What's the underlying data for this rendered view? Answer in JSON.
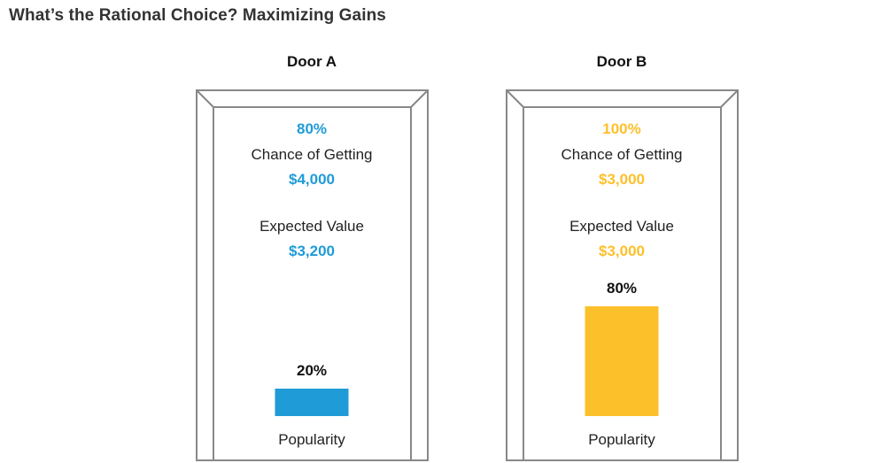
{
  "title": "What’s the Rational Choice? Maximizing Gains",
  "colors": {
    "door_a": "#1f9bd7",
    "door_b": "#fcc02b",
    "frame": "#888888"
  },
  "chart_data": {
    "type": "bar",
    "title": "What’s the Rational Choice? Maximizing Gains",
    "categories": [
      "Door A",
      "Door B"
    ],
    "values": [
      20,
      80
    ],
    "unit": "%",
    "xlabel": "Popularity",
    "doors": [
      {
        "label": "Door A",
        "chance": "80%",
        "chance_label": "Chance of Getting",
        "amount": "$4,000",
        "ev_label": "Expected Value",
        "ev": "$3,200",
        "popularity_value": 20,
        "popularity": "20%",
        "popularity_label": "Popularity"
      },
      {
        "label": "Door B",
        "chance": "100%",
        "chance_label": "Chance of Getting",
        "amount": "$3,000",
        "ev_label": "Expected Value",
        "ev": "$3,000",
        "popularity_value": 80,
        "popularity": "80%",
        "popularity_label": "Popularity"
      }
    ]
  }
}
